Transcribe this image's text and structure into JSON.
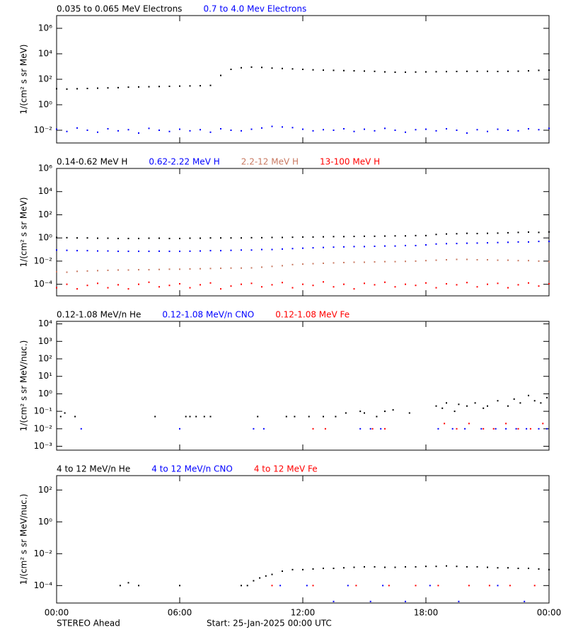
{
  "chart_data": [
    {
      "type": "scatter",
      "y_label": "1/(cm² s sr MeV)",
      "log_y": true,
      "xlim": [
        0,
        24
      ],
      "ylim": [
        0.001,
        10000000
      ],
      "yticks": [
        {
          "value": 0.01,
          "label": "10⁻²"
        },
        {
          "value": 1,
          "label": "10⁰"
        },
        {
          "value": 100,
          "label": "10²"
        },
        {
          "value": 10000,
          "label": "10⁴"
        },
        {
          "value": 1000000,
          "label": "10⁶"
        }
      ],
      "series": [
        {
          "name": "0.035 to 0.065 MeV Electrons",
          "color": "#000000",
          "x": [
            0,
            0.5,
            1,
            1.5,
            2,
            2.5,
            3,
            3.5,
            4,
            4.5,
            5,
            5.5,
            6,
            6.5,
            7,
            7.5,
            8,
            8.5,
            9,
            9.5,
            10,
            10.5,
            11,
            11.5,
            12,
            12.5,
            13,
            13.5,
            14,
            14.5,
            15,
            15.5,
            16,
            16.5,
            17,
            17.5,
            18,
            18.5,
            19,
            19.5,
            20,
            20.5,
            21,
            21.5,
            22,
            22.5,
            23,
            23.5,
            24
          ],
          "values": [
            18,
            17,
            18,
            19,
            20,
            21,
            22,
            24,
            25,
            26,
            27,
            28,
            29,
            30,
            31,
            33,
            200,
            600,
            800,
            900,
            850,
            750,
            700,
            650,
            600,
            550,
            520,
            500,
            480,
            460,
            440,
            420,
            380,
            360,
            360,
            370,
            380,
            390,
            400,
            410,
            420,
            420,
            420,
            410,
            420,
            430,
            460,
            500,
            520
          ]
        },
        {
          "name": "0.7 to 4.0 Mev Electrons",
          "color": "#0000ff",
          "x": [
            0,
            0.5,
            1,
            1.5,
            2,
            2.5,
            3,
            3.5,
            4,
            4.5,
            5,
            5.5,
            6,
            6.5,
            7,
            7.5,
            8,
            8.5,
            9,
            9.5,
            10,
            10.5,
            11,
            11.5,
            12,
            12.5,
            13,
            13.5,
            14,
            14.5,
            15,
            15.5,
            16,
            16.5,
            17,
            17.5,
            18,
            18.5,
            19,
            19.5,
            20,
            20.5,
            21,
            21.5,
            22,
            22.5,
            23,
            23.5,
            24
          ],
          "values": [
            0.012,
            0.008,
            0.015,
            0.01,
            0.007,
            0.013,
            0.009,
            0.011,
            0.006,
            0.014,
            0.01,
            0.008,
            0.012,
            0.009,
            0.011,
            0.007,
            0.013,
            0.01,
            0.009,
            0.012,
            0.015,
            0.02,
            0.018,
            0.016,
            0.012,
            0.009,
            0.011,
            0.01,
            0.013,
            0.008,
            0.012,
            0.009,
            0.014,
            0.01,
            0.007,
            0.011,
            0.012,
            0.009,
            0.013,
            0.01,
            0.006,
            0.011,
            0.008,
            0.012,
            0.01,
            0.009,
            0.013,
            0.011,
            0.014
          ]
        }
      ]
    },
    {
      "type": "scatter",
      "y_label": "1/(cm² s sr MeV)",
      "log_y": true,
      "xlim": [
        0,
        24
      ],
      "ylim": [
        1e-05,
        1000000
      ],
      "yticks": [
        {
          "value": 0.0001,
          "label": "10⁻⁴"
        },
        {
          "value": 0.01,
          "label": "10⁻²"
        },
        {
          "value": 1,
          "label": "10⁰"
        },
        {
          "value": 100,
          "label": "10²"
        },
        {
          "value": 10000,
          "label": "10⁴"
        },
        {
          "value": 1000000,
          "label": "10⁶"
        }
      ],
      "series": [
        {
          "name": "0.14-0.62 MeV H",
          "color": "#000000",
          "x": [
            0,
            0.5,
            1,
            1.5,
            2,
            2.5,
            3,
            3.5,
            4,
            4.5,
            5,
            5.5,
            6,
            6.5,
            7,
            7.5,
            8,
            8.5,
            9,
            9.5,
            10,
            10.5,
            11,
            11.5,
            12,
            12.5,
            13,
            13.5,
            14,
            14.5,
            15,
            15.5,
            16,
            16.5,
            17,
            17.5,
            18,
            18.5,
            19,
            19.5,
            20,
            20.5,
            21,
            21.5,
            22,
            22.5,
            23,
            23.5,
            24
          ],
          "values": [
            1.1,
            1.05,
            1.0,
            1.0,
            0.95,
            0.95,
            0.9,
            0.9,
            0.9,
            0.95,
            0.95,
            0.9,
            0.9,
            0.95,
            0.95,
            1.0,
            1.0,
            1.0,
            1.0,
            1.05,
            1.05,
            1.1,
            1.1,
            1.15,
            1.2,
            1.2,
            1.25,
            1.3,
            1.3,
            1.35,
            1.4,
            1.4,
            1.45,
            1.5,
            1.5,
            1.6,
            1.6,
            2.0,
            2.2,
            2.3,
            2.5,
            2.4,
            2.5,
            2.6,
            2.8,
            3.0,
            3.2,
            3.0,
            3.3
          ]
        },
        {
          "name": "0.62-2.22 MeV H",
          "color": "#0000ff",
          "x": [
            0,
            0.5,
            1,
            1.5,
            2,
            2.5,
            3,
            3.5,
            4,
            4.5,
            5,
            5.5,
            6,
            6.5,
            7,
            7.5,
            8,
            8.5,
            9,
            9.5,
            10,
            10.5,
            11,
            11.5,
            12,
            12.5,
            13,
            13.5,
            14,
            14.5,
            15,
            15.5,
            16,
            16.5,
            17,
            17.5,
            18,
            18.5,
            19,
            19.5,
            20,
            20.5,
            21,
            21.5,
            22,
            22.5,
            23,
            23.5,
            24
          ],
          "values": [
            0.09,
            0.085,
            0.08,
            0.08,
            0.075,
            0.075,
            0.07,
            0.07,
            0.07,
            0.07,
            0.072,
            0.07,
            0.07,
            0.072,
            0.075,
            0.08,
            0.08,
            0.085,
            0.09,
            0.09,
            0.1,
            0.1,
            0.11,
            0.12,
            0.13,
            0.14,
            0.15,
            0.16,
            0.17,
            0.18,
            0.18,
            0.19,
            0.2,
            0.2,
            0.22,
            0.22,
            0.25,
            0.3,
            0.32,
            0.33,
            0.35,
            0.36,
            0.38,
            0.4,
            0.42,
            0.45,
            0.45,
            0.5,
            0.5
          ]
        },
        {
          "name": "2.2-12 MeV H",
          "color": "#c87860",
          "x": [
            0,
            0.5,
            1,
            1.5,
            2,
            2.5,
            3,
            3.5,
            4,
            4.5,
            5,
            5.5,
            6,
            6.5,
            7,
            7.5,
            8,
            8.5,
            9,
            9.5,
            10,
            10.5,
            11,
            11.5,
            12,
            12.5,
            13,
            13.5,
            14,
            14.5,
            15,
            15.5,
            16,
            16.5,
            17,
            17.5,
            18,
            18.5,
            19,
            19.5,
            20,
            20.5,
            21,
            21.5,
            22,
            22.5,
            23,
            23.5,
            24
          ],
          "values": [
            0.0012,
            0.0011,
            0.0013,
            0.0014,
            0.0015,
            0.0016,
            0.0017,
            0.0017,
            0.0018,
            0.0018,
            0.0019,
            0.002,
            0.002,
            0.0021,
            0.0022,
            0.0023,
            0.0024,
            0.0025,
            0.0025,
            0.0026,
            0.003,
            0.0035,
            0.004,
            0.005,
            0.0055,
            0.006,
            0.0065,
            0.007,
            0.0075,
            0.008,
            0.008,
            0.0085,
            0.009,
            0.009,
            0.0095,
            0.01,
            0.011,
            0.012,
            0.013,
            0.014,
            0.014,
            0.013,
            0.013,
            0.012,
            0.012,
            0.011,
            0.011,
            0.01,
            0.009
          ]
        },
        {
          "name": "13-100 MeV H",
          "color": "#ff0000",
          "x": [
            0,
            0.5,
            1,
            1.5,
            2,
            2.5,
            3,
            3.5,
            4,
            4.5,
            5,
            5.5,
            6,
            6.5,
            7,
            7.5,
            8,
            8.5,
            9,
            9.5,
            10,
            10.5,
            11,
            11.5,
            12,
            12.5,
            13,
            13.5,
            14,
            14.5,
            15,
            15.5,
            16,
            16.5,
            17,
            17.5,
            18,
            18.5,
            19,
            19.5,
            20,
            20.5,
            21,
            21.5,
            22,
            22.5,
            23,
            23.5,
            24
          ],
          "values": [
            5e-05,
            0.0001,
            4e-05,
            8e-05,
            0.00012,
            5e-05,
            9e-05,
            4e-05,
            0.0001,
            0.00015,
            6e-05,
            8e-05,
            0.00011,
            5e-05,
            9e-05,
            0.00013,
            4e-05,
            7e-05,
            0.0001,
            0.00012,
            6e-05,
            9e-05,
            0.00014,
            5e-05,
            0.0001,
            8e-05,
            0.00016,
            6e-05,
            0.0001,
            4e-05,
            0.00012,
            9e-05,
            0.00015,
            6e-05,
            0.0001,
            8e-05,
            0.00013,
            5e-05,
            0.00011,
            9e-05,
            0.00014,
            6e-05,
            0.0001,
            0.00012,
            5e-05,
            9e-05,
            0.00013,
            7e-05,
            0.00011
          ]
        }
      ]
    },
    {
      "type": "scatter",
      "y_label": "1/(cm² s sr MeV/nuc.)",
      "log_y": true,
      "xlim": [
        0,
        24
      ],
      "ylim": [
        0.0006,
        14000
      ],
      "yticks": [
        {
          "value": 0.001,
          "label": "10⁻³"
        },
        {
          "value": 0.01,
          "label": "10⁻²"
        },
        {
          "value": 0.1,
          "label": "10⁻¹"
        },
        {
          "value": 1,
          "label": "10⁰"
        },
        {
          "value": 10,
          "label": "10¹"
        },
        {
          "value": 100,
          "label": "10²"
        },
        {
          "value": 1000,
          "label": "10³"
        },
        {
          "value": 10000,
          "label": "10⁴"
        }
      ],
      "series": [
        {
          "name": "0.12-1.08 MeV/n He",
          "color": "#000000",
          "x": [
            0.2,
            0.4,
            0.9,
            4.8,
            6.3,
            6.5,
            6.8,
            7.2,
            7.5,
            9.8,
            11.2,
            11.6,
            12.3,
            13,
            13.6,
            14.1,
            14.8,
            15,
            15.6,
            16,
            16.4,
            17.2,
            18.5,
            18.8,
            19,
            19.4,
            19.6,
            20,
            20.4,
            20.8,
            21,
            21.5,
            22,
            22.3,
            22.6,
            23,
            23.3,
            23.6,
            23.9
          ],
          "values": [
            0.05,
            0.08,
            0.05,
            0.05,
            0.05,
            0.05,
            0.05,
            0.05,
            0.05,
            0.05,
            0.05,
            0.05,
            0.05,
            0.05,
            0.05,
            0.08,
            0.1,
            0.08,
            0.05,
            0.1,
            0.12,
            0.08,
            0.2,
            0.15,
            0.3,
            0.1,
            0.25,
            0.2,
            0.3,
            0.15,
            0.2,
            0.4,
            0.2,
            0.5,
            0.3,
            0.8,
            0.4,
            0.3,
            0.6
          ]
        },
        {
          "name": "0.12-1.08 MeV/n CNO",
          "color": "#0000ff",
          "x": [
            1.2,
            6.0,
            9.6,
            10.1,
            14.8,
            15.3,
            15.8,
            18.6,
            19.3,
            19.9,
            20.7,
            21.4,
            21.9,
            22.4,
            22.9,
            23.5,
            23.9
          ],
          "values": [
            0.01,
            0.01,
            0.01,
            0.01,
            0.01,
            0.01,
            0.01,
            0.01,
            0.01,
            0.01,
            0.01,
            0.01,
            0.01,
            0.01,
            0.01,
            0.01,
            0.01
          ]
        },
        {
          "name": "0.12-1.08 MeV Fe",
          "color": "#ff0000",
          "x": [
            12.5,
            13.1,
            15.4,
            16.0,
            18.9,
            19.5,
            20.1,
            20.8,
            21.3,
            21.9,
            22.5,
            23.1,
            23.7
          ],
          "values": [
            0.01,
            0.01,
            0.01,
            0.01,
            0.02,
            0.01,
            0.02,
            0.01,
            0.01,
            0.02,
            0.01,
            0.01,
            0.02
          ]
        }
      ]
    },
    {
      "type": "scatter",
      "y_label": "1/(cm² s sr MeV/nuc.)",
      "log_y": true,
      "xlim": [
        0,
        24
      ],
      "ylim": [
        8e-06,
        800
      ],
      "yticks": [
        {
          "value": 0.0001,
          "label": "10⁻⁴"
        },
        {
          "value": 0.01,
          "label": "10⁻²"
        },
        {
          "value": 1,
          "label": "10⁰"
        },
        {
          "value": 100,
          "label": "10²"
        }
      ],
      "xticks": [
        {
          "value": 0,
          "label": "00:00"
        },
        {
          "value": 6,
          "label": "06:00"
        },
        {
          "value": 12,
          "label": "12:00"
        },
        {
          "value": 18,
          "label": "18:00"
        },
        {
          "value": 24,
          "label": "00:00"
        }
      ],
      "series": [
        {
          "name": "4 to 12 MeV/n He",
          "color": "#000000",
          "x": [
            3.1,
            3.5,
            4.0,
            6.0,
            9.0,
            9.3,
            9.6,
            9.9,
            10.2,
            10.5,
            11,
            11.5,
            12,
            12.5,
            13,
            13.5,
            14,
            14.5,
            15,
            15.5,
            16,
            16.5,
            17,
            17.5,
            18,
            18.5,
            19,
            19.5,
            20,
            20.5,
            21,
            21.5,
            22,
            22.5,
            23,
            23.5,
            24
          ],
          "values": [
            0.0001,
            0.00015,
            0.0001,
            0.0001,
            0.0001,
            0.0001,
            0.0002,
            0.0003,
            0.0004,
            0.0005,
            0.0008,
            0.001,
            0.001,
            0.0011,
            0.0012,
            0.0012,
            0.0013,
            0.0014,
            0.0015,
            0.0015,
            0.0014,
            0.0014,
            0.0015,
            0.0015,
            0.0016,
            0.0016,
            0.0017,
            0.0016,
            0.0015,
            0.0015,
            0.0014,
            0.0013,
            0.0013,
            0.0012,
            0.0012,
            0.0011,
            0.001
          ]
        },
        {
          "name": "4 to 12 MeV/n CNO",
          "color": "#0000ff",
          "x": [
            10.9,
            12.2,
            13.5,
            14.2,
            15.3,
            15.9,
            17,
            18.2,
            19.6,
            21.5,
            22.8
          ],
          "values": [
            0.0001,
            0.0001,
            1e-05,
            0.0001,
            1e-05,
            0.0001,
            1e-05,
            0.0001,
            1e-05,
            0.0001,
            1e-05
          ]
        },
        {
          "name": "4 to 12 MeV Fe",
          "color": "#ff0000",
          "x": [
            10.5,
            12.5,
            14.6,
            16.2,
            17.5,
            18.6,
            20.1,
            21.1,
            22.1,
            23.3
          ],
          "values": [
            0.0001,
            0.0001,
            0.0001,
            0.0001,
            0.0001,
            0.0001,
            0.0001,
            0.0001,
            0.0001,
            0.0001
          ]
        }
      ]
    }
  ],
  "footer": {
    "spacecraft": "STEREO Ahead",
    "start": "Start: 25-Jan-2025 00:00 UTC"
  }
}
